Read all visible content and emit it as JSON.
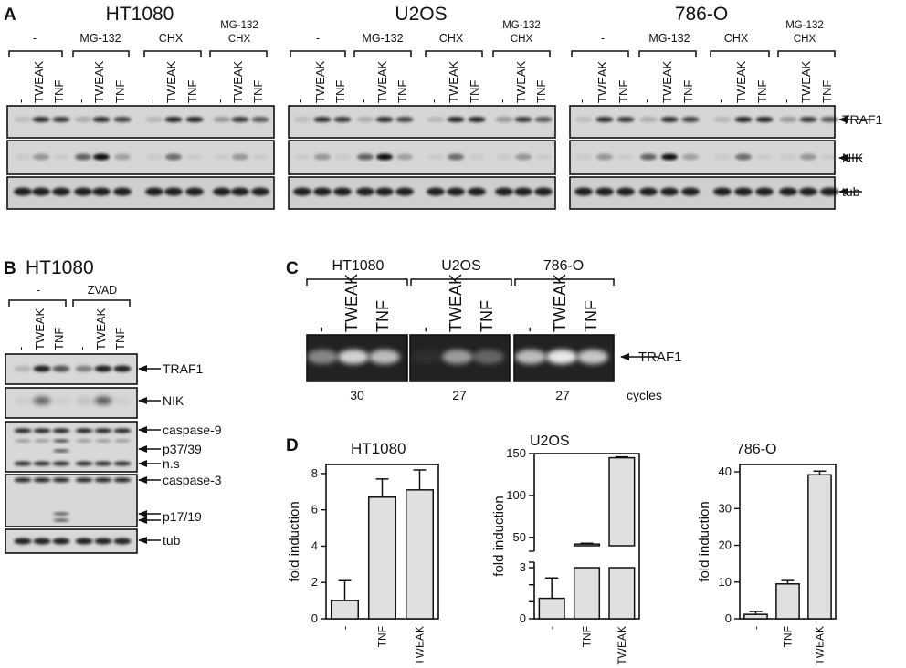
{
  "panel_a": {
    "label": "A",
    "cells": [
      "HT1080",
      "U2OS",
      "786-O"
    ],
    "condition_groups": [
      "-",
      "MG-132",
      "CHX",
      "MG-132\nCHX"
    ],
    "lanes": [
      "-",
      "TWEAK",
      "TNF"
    ],
    "bands": [
      "TRAF1",
      "NIK",
      "tub"
    ]
  },
  "panel_b": {
    "label": "B",
    "cell": "HT1080",
    "condition_groups": [
      "-",
      "ZVAD"
    ],
    "lanes": [
      "-",
      "TWEAK",
      "TNF"
    ],
    "bands": [
      "TRAF1",
      "NIK",
      "caspase-9",
      "p37/39",
      "n.s",
      "caspase-3",
      "p17/19",
      "tub"
    ]
  },
  "panel_c": {
    "label": "C",
    "cells": [
      "HT1080",
      "U2OS",
      "786-O"
    ],
    "lanes": [
      "-",
      "TWEAK",
      "TNF"
    ],
    "band": "TRAF1",
    "cycles": [
      "30",
      "27",
      "27"
    ],
    "cycles_label": "cycles"
  },
  "panel_d": {
    "label": "D"
  },
  "chart_data": [
    {
      "type": "bar",
      "title": "HT1080",
      "categories": [
        "-",
        "TNF",
        "TWEAK"
      ],
      "values": [
        1.0,
        6.7,
        7.1
      ],
      "errors": [
        1.1,
        1.0,
        1.1
      ],
      "ylabel": "fold induction",
      "ylim": [
        0,
        8.5
      ],
      "yticks": [
        "0",
        "2",
        "4",
        "6",
        "8"
      ],
      "bar_color": "#e0e0e0"
    },
    {
      "type": "bar",
      "title": "U2OS",
      "categories": [
        "-",
        "TNF",
        "TWEAK"
      ],
      "values": [
        1.2,
        42,
        145
      ],
      "errors": [
        1.2,
        1,
        1
      ],
      "ylabel": "fold induction",
      "axis_break": true,
      "ylim_lower": [
        0,
        3
      ],
      "ylim_upper": [
        40,
        150
      ],
      "yticks": [
        "0",
        "1",
        "2",
        "3",
        "50",
        "100",
        "150"
      ],
      "bar_color": "#e0e0e0"
    },
    {
      "type": "bar",
      "title": "786-O",
      "categories": [
        "-",
        "TNF",
        "TWEAK"
      ],
      "values": [
        1.2,
        9.5,
        39.2
      ],
      "errors": [
        0.8,
        0.9,
        1.0
      ],
      "ylabel": "fold induction",
      "ylim": [
        0,
        42
      ],
      "yticks": [
        "0",
        "10",
        "20",
        "30",
        "40"
      ],
      "bar_color": "#e0e0e0"
    }
  ]
}
